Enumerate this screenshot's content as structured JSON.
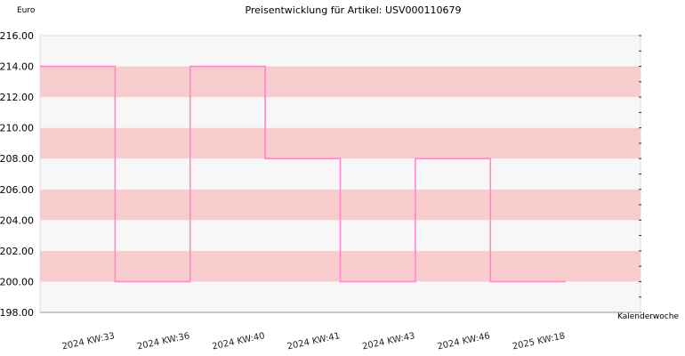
{
  "chart_data": {
    "type": "line",
    "step": true,
    "title": "Preisentwicklung für Artikel: USV000110679",
    "ylabel": "Euro",
    "xlabel": "Kalenderwoche",
    "ylim": [
      198,
      216
    ],
    "ytick_step": 2,
    "categories": [
      "2024 KW:33",
      "2024 KW:36",
      "2024 KW:40",
      "2024 KW:41",
      "2024 KW:43",
      "2024 KW:46",
      "2025 KW:18"
    ],
    "series": [
      {
        "values": [
          214,
          200,
          214,
          208,
          200,
          208,
          200
        ]
      }
    ],
    "grid": true,
    "colors": {
      "line": "#ff88cc",
      "band_dark": "#f8cccc",
      "band_light": "#f7f7f7",
      "axis": "#999999"
    }
  }
}
